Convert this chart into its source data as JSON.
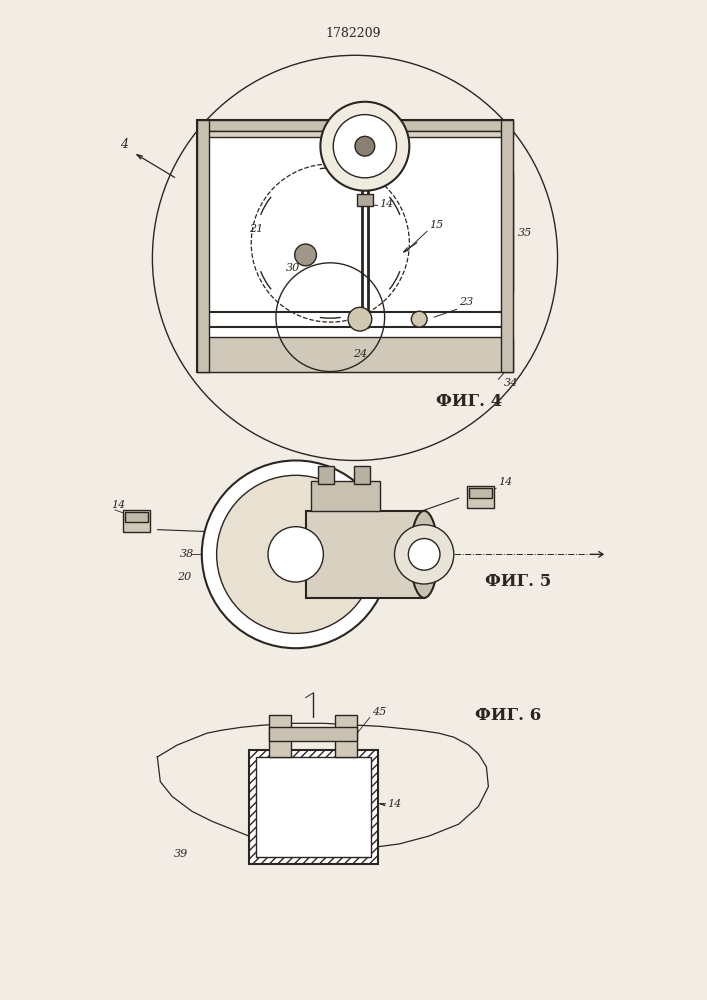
{
  "title": "1782209",
  "bg_color": "#f2ede4",
  "line_color": "#2a2520",
  "fig4_label": "ФИГ. 4",
  "fig5_label": "ФИГ. 5",
  "fig6_label": "ФИГ. 6"
}
